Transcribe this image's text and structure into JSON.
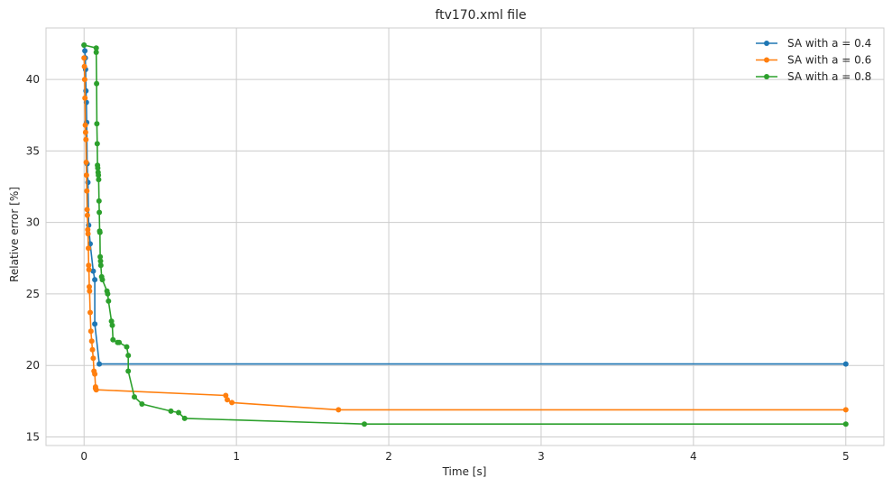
{
  "chart_data": {
    "type": "line",
    "title": "ftv170.xml file",
    "xlabel": "Time [s]",
    "ylabel": "Relative error [%]",
    "xlim": [
      -0.25,
      5.25
    ],
    "ylim": [
      14.4,
      43.6
    ],
    "xticks": [
      0,
      1,
      2,
      3,
      4,
      5
    ],
    "xtick_labels": [
      "0",
      "1",
      "2",
      "3",
      "4",
      "5"
    ],
    "yticks": [
      15,
      20,
      25,
      30,
      35,
      40
    ],
    "ytick_labels": [
      "15",
      "20",
      "25",
      "30",
      "35",
      "40"
    ],
    "grid": true,
    "legend": "top-right",
    "series": [
      {
        "name": "SA with a = 0.4",
        "color": "#1f77b4",
        "x": [
          0.0,
          0.005,
          0.008,
          0.01,
          0.012,
          0.015,
          0.017,
          0.02,
          0.025,
          0.03,
          0.04,
          0.06,
          0.07,
          0.07,
          0.1,
          5.0
        ],
        "y": [
          42.4,
          42.0,
          41.5,
          40.7,
          39.2,
          38.4,
          37.0,
          34.1,
          32.8,
          29.8,
          28.5,
          26.6,
          26.0,
          22.9,
          20.1,
          20.1
        ]
      },
      {
        "name": "SA with a = 0.6",
        "color": "#ff7f0e",
        "x": [
          0.0,
          0.002,
          0.004,
          0.006,
          0.008,
          0.01,
          0.012,
          0.014,
          0.016,
          0.018,
          0.02,
          0.022,
          0.024,
          0.026,
          0.028,
          0.03,
          0.032,
          0.034,
          0.036,
          0.04,
          0.045,
          0.05,
          0.055,
          0.06,
          0.065,
          0.07,
          0.075,
          0.075,
          0.08,
          0.93,
          0.94,
          0.97,
          1.67,
          5.0
        ],
        "y": [
          41.5,
          40.9,
          40.0,
          38.7,
          36.8,
          36.3,
          35.8,
          34.2,
          33.3,
          32.2,
          30.9,
          30.5,
          29.5,
          29.2,
          28.2,
          27.0,
          26.7,
          25.5,
          25.2,
          23.7,
          22.4,
          21.7,
          21.1,
          20.5,
          19.6,
          19.4,
          18.5,
          18.4,
          18.3,
          17.9,
          17.6,
          17.4,
          16.9,
          16.9
        ]
      },
      {
        "name": "SA with a = 0.8",
        "color": "#2ca02c",
        "x": [
          0.0,
          0.08,
          0.08,
          0.082,
          0.084,
          0.086,
          0.088,
          0.09,
          0.092,
          0.094,
          0.096,
          0.098,
          0.1,
          0.102,
          0.104,
          0.106,
          0.108,
          0.11,
          0.115,
          0.12,
          0.15,
          0.155,
          0.16,
          0.18,
          0.185,
          0.19,
          0.22,
          0.23,
          0.28,
          0.29,
          0.29,
          0.33,
          0.38,
          0.57,
          0.62,
          0.66,
          1.84,
          5.0
        ],
        "y": [
          42.4,
          42.2,
          41.9,
          39.7,
          36.9,
          35.5,
          34.0,
          33.8,
          33.5,
          33.3,
          33.0,
          31.5,
          30.7,
          29.4,
          29.3,
          27.6,
          27.3,
          27.0,
          26.2,
          26.0,
          25.2,
          25.0,
          24.5,
          23.1,
          22.8,
          21.8,
          21.6,
          21.6,
          21.3,
          20.7,
          19.6,
          17.8,
          17.3,
          16.8,
          16.7,
          16.3,
          15.9,
          15.9
        ]
      }
    ]
  }
}
